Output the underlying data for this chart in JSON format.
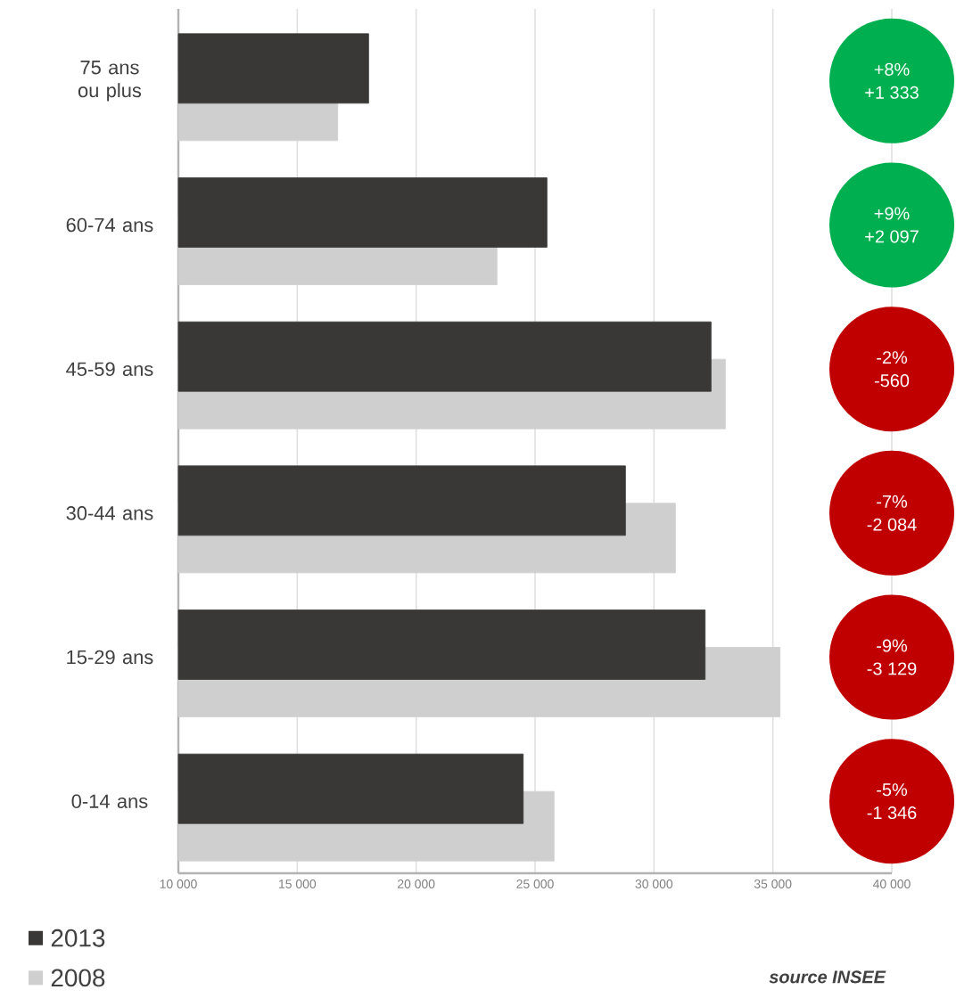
{
  "chart_data": {
    "type": "bar",
    "orientation": "horizontal",
    "categories": [
      "75 ans ou plus",
      "60-74 ans",
      "45-59 ans",
      "30-44 ans",
      "15-29 ans",
      "0-14 ans"
    ],
    "series": [
      {
        "name": "2013",
        "color": "#393837",
        "values": [
          18000,
          25500,
          32400,
          28800,
          32150,
          24500
        ]
      },
      {
        "name": "2008",
        "color": "#d0cfd0",
        "values": [
          16700,
          23400,
          33000,
          30900,
          35300,
          25800
        ]
      }
    ],
    "xlim": [
      10000,
      40000
    ],
    "xticks": [
      {
        "value": 10000,
        "label": "10 000"
      },
      {
        "value": 15000,
        "label": "15 000"
      },
      {
        "value": 20000,
        "label": "20 000"
      },
      {
        "value": 25000,
        "label": "25 000"
      },
      {
        "value": 30000,
        "label": "30 000"
      },
      {
        "value": 35000,
        "label": "35 000"
      },
      {
        "value": 40000,
        "label": "40 000"
      }
    ],
    "grid": "x",
    "legend": "bottom left",
    "annotations": [
      "+8%",
      "+1 333",
      "+9%",
      "+2 097",
      "-2%",
      "-560",
      "-7%",
      "-2 084",
      "-9%",
      "-3 129",
      "-5%",
      "-1 346",
      "source INSEE"
    ]
  }
}
